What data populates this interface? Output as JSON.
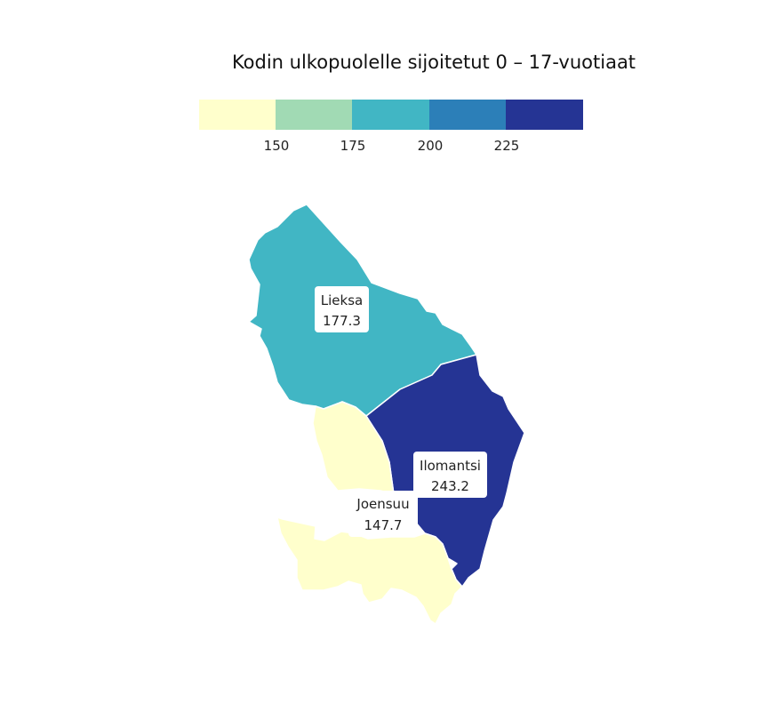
{
  "title": "Kodin ulkopuolelle sijoitetut 0 – 17-vuotiaat",
  "legend": {
    "colors": [
      "#ffffcc",
      "#a1dab4",
      "#41b6c4",
      "#2c7fb8",
      "#253494"
    ],
    "breaks": [
      "150",
      "175",
      "200",
      "225"
    ]
  },
  "regions": [
    {
      "name": "Lieksa",
      "value": "177.3",
      "color": "#41b6c4"
    },
    {
      "name": "Ilomantsi",
      "value": "243.2",
      "color": "#253494"
    },
    {
      "name": "Joensuu",
      "value": "147.7",
      "color": "#ffffcc"
    }
  ]
}
